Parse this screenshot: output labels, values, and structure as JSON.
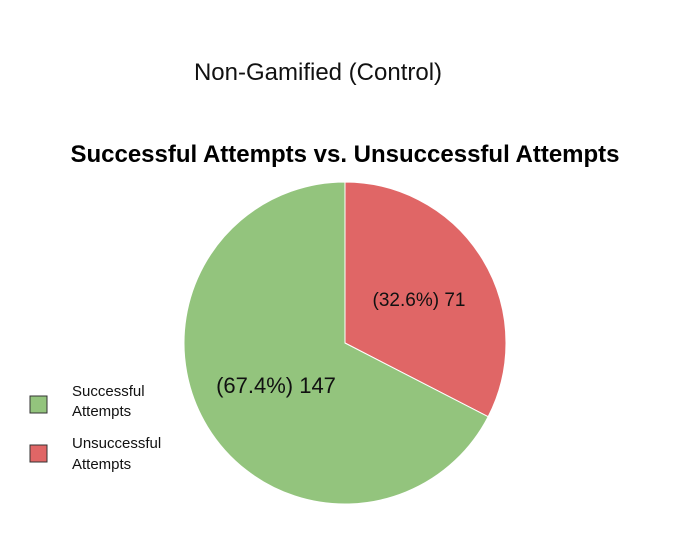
{
  "chart_data": {
    "type": "pie",
    "title": "Successful Attempts vs. Unsuccessful Attempts",
    "subtitle": "Non-Gamified (Control)",
    "slices": [
      {
        "name": "Successful Attempts",
        "value": 147,
        "percent": 67.4,
        "label": "(67.4%) 147",
        "color": "#93c47d"
      },
      {
        "name": "Unsuccessful Attempts",
        "value": 71,
        "percent": 32.6,
        "label": "(32.6%) 71",
        "color": "#e06666"
      }
    ],
    "legend": {
      "placement": "bottom-left",
      "entries": [
        {
          "line1": "Successful",
          "line2": "Attempts"
        },
        {
          "line1": "Unsuccessful",
          "line2": "Attempts"
        }
      ]
    }
  }
}
